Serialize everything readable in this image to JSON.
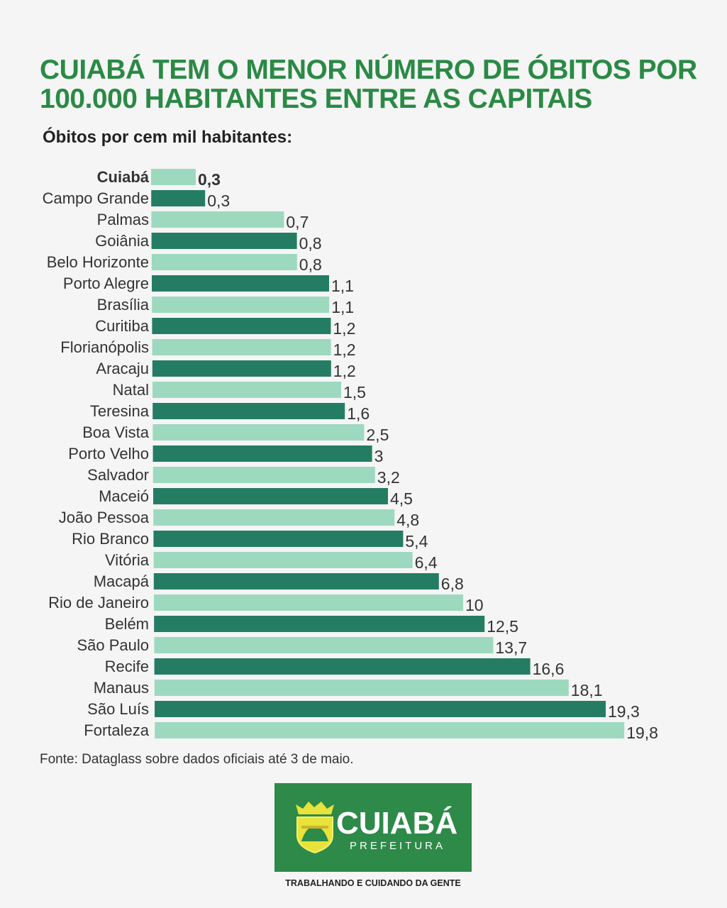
{
  "chart_data": {
    "type": "bar",
    "orientation": "horizontal",
    "title": "CUIABÁ TEM O MENOR NÚMERO DE ÓBITOS POR 100.000 HABITANTES ENTRE AS CAPITAIS",
    "subtitle": "Óbitos por cem mil habitantes:",
    "categories": [
      "Cuiabá",
      "Campo Grande",
      "Palmas",
      "Goiânia",
      "Belo Horizonte",
      "Porto Alegre",
      "Brasília",
      "Curitiba",
      "Florianópolis",
      "Aracaju",
      "Natal",
      "Teresina",
      "Boa Vista",
      "Porto Velho",
      "Salvador",
      "Maceió",
      "João Pessoa",
      "Rio Branco",
      "Vitória",
      "Macapá",
      "Rio de Janeiro",
      "Belém",
      "São Paulo",
      "Recife",
      "Manaus",
      "São Luís",
      "Fortaleza"
    ],
    "values": [
      0.3,
      0.3,
      0.7,
      0.8,
      0.8,
      1.1,
      1.1,
      1.2,
      1.2,
      1.2,
      1.5,
      1.6,
      2.5,
      3,
      3.2,
      4.5,
      4.8,
      5.4,
      6.4,
      6.8,
      10,
      12.5,
      13.7,
      16.6,
      18.1,
      19.3,
      19.8
    ],
    "value_labels": [
      "0,3",
      "0,3",
      "0,7",
      "0,8",
      "0,8",
      "1,1",
      "1,1",
      "1,2",
      "1,2",
      "1,2",
      "1,5",
      "1,6",
      "2,5",
      "3",
      "3,2",
      "4,5",
      "4,8",
      "5,4",
      "6,4",
      "6,8",
      "10",
      "12,5",
      "13,7",
      "16,6",
      "18,1",
      "19,3",
      "19,8"
    ],
    "highlight": "Cuiabá",
    "colors": {
      "light": "#9dd9bf",
      "dark": "#247d62",
      "title": "#2a8a45"
    },
    "grid": false,
    "source": "Fonte: Dataglass sobre dados oficiais até 3 de maio."
  },
  "logo": {
    "word": "CUIABÁ",
    "sub": "PREFEITURA",
    "bg": "#2d8a48",
    "icon": "city-coat-of-arms-icon"
  },
  "tagline": "TRABALHANDO E CUIDANDO DA GENTE"
}
